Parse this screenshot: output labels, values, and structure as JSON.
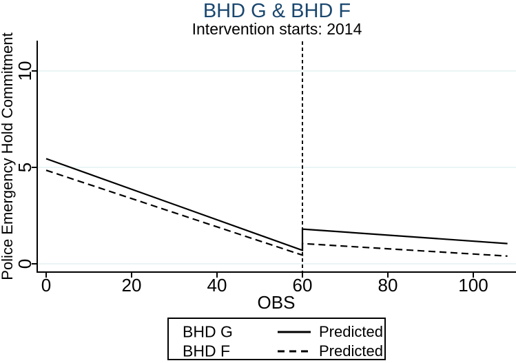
{
  "title": "BHD G & BHD F",
  "subtitle": "Intervention starts: 2014",
  "colors": {
    "title_navy": "#1a476f",
    "gridline": "#e4f0f2",
    "line_black": "#000000",
    "background": "#ffffff"
  },
  "axes": {
    "x_label": "OBS",
    "y_label": "Police Emergency Hold Commitment"
  },
  "chart_data": {
    "type": "line",
    "title": "BHD G & BHD F",
    "subtitle": "Intervention starts: 2014",
    "xlabel": "OBS",
    "ylabel": "Police Emergency Hold Commitment",
    "xlim": [
      0,
      110
    ],
    "ylim": [
      0,
      11.6
    ],
    "x_ticks": [
      0,
      20,
      40,
      60,
      80,
      100
    ],
    "y_ticks": [
      0,
      5,
      10
    ],
    "grid": "horizontal gridlines at y ticks",
    "intervention_x": 60,
    "intervention_line": "vertical dashed",
    "legend_position": "bottom-center",
    "series": [
      {
        "name": "BHD G",
        "line_style": "solid",
        "legend_label": "Predicted",
        "segments": [
          {
            "x": [
              0,
              60
            ],
            "y": [
              5.45,
              0.7
            ]
          },
          {
            "x": [
              60,
              108
            ],
            "y": [
              1.8,
              1.05
            ]
          }
        ]
      },
      {
        "name": "BHD F",
        "line_style": "dashed",
        "legend_label": "Predicted",
        "segments": [
          {
            "x": [
              0,
              60
            ],
            "y": [
              4.85,
              0.45
            ]
          },
          {
            "x": [
              60,
              108
            ],
            "y": [
              1.05,
              0.4
            ]
          }
        ]
      }
    ]
  },
  "legend": {
    "rows": [
      {
        "series": "BHD G",
        "sample_style": "solid",
        "label": "Predicted"
      },
      {
        "series": "BHD F",
        "sample_style": "dashed",
        "label": "Predicted"
      }
    ]
  }
}
